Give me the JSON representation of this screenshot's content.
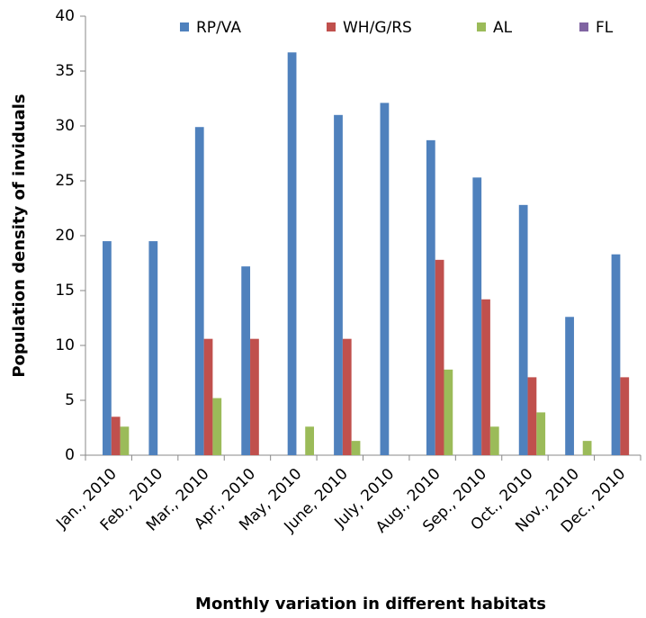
{
  "chart_data": {
    "type": "bar",
    "x_label": "Monthly variation in different habitats",
    "y_label": "Population density of inviduals",
    "categories": [
      "Jan., 2010",
      "Feb., 2010",
      "Mar., 2010",
      "Apr., 2010",
      "May, 2010",
      "June, 2010",
      "July, 2010",
      "Aug., 2010",
      "Sep., 2010",
      "Oct., 2010",
      "Nov., 2010",
      "Dec., 2010"
    ],
    "series": [
      {
        "name": "RP/VA",
        "color": "#4f81bd",
        "values": [
          19.5,
          19.5,
          29.9,
          17.2,
          36.7,
          31.0,
          32.1,
          28.7,
          25.3,
          22.8,
          12.6,
          18.3
        ]
      },
      {
        "name": "WH/G/RS",
        "color": "#c0504d",
        "values": [
          3.5,
          0,
          10.6,
          10.6,
          0,
          10.6,
          0,
          17.8,
          14.2,
          7.1,
          0,
          7.1
        ]
      },
      {
        "name": "AL",
        "color": "#9bbb59",
        "values": [
          2.6,
          0,
          5.2,
          0,
          2.6,
          1.3,
          0,
          7.8,
          2.6,
          3.9,
          1.3,
          0
        ]
      },
      {
        "name": "FL",
        "color": "#8064a2",
        "values": [
          0,
          0,
          0,
          0,
          0,
          0,
          0,
          0,
          0,
          0,
          0,
          0
        ]
      }
    ],
    "ylim": [
      0,
      40
    ],
    "yticks": [
      0,
      5,
      10,
      15,
      20,
      25,
      30,
      35,
      40
    ],
    "legend": "top"
  }
}
